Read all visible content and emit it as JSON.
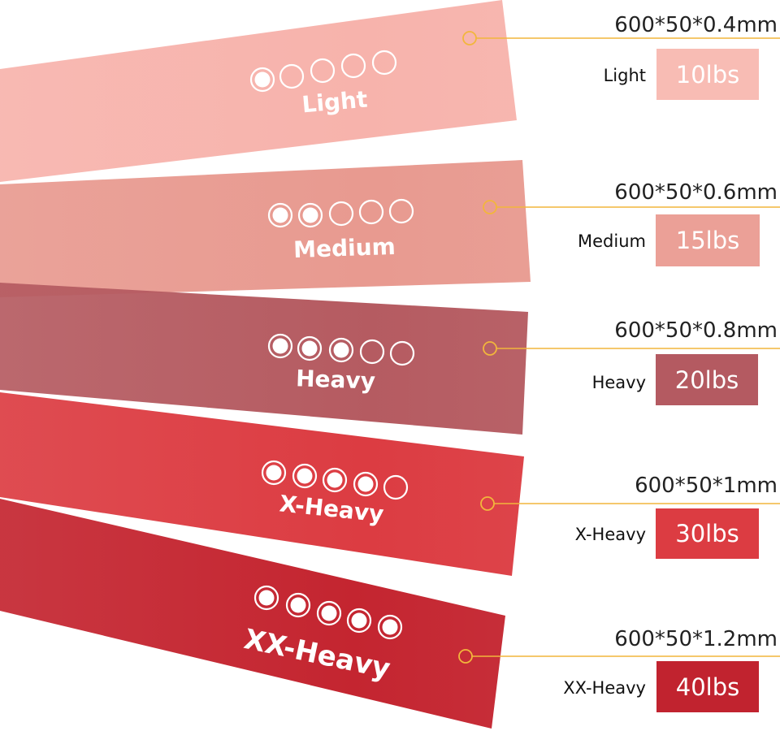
{
  "rating_max": 5,
  "bands": [
    {
      "label": "Light",
      "level": "Light",
      "thickness_spec": "600*50*0.4mm",
      "resistance": "10lbs",
      "rating": 1,
      "color": "#f7b3ac",
      "box_color": "#f8bcb4",
      "box_text_color": "#ffffff"
    },
    {
      "label": "Medium",
      "level": "Medium",
      "thickness_spec": "600*50*0.6mm",
      "resistance": "15lbs",
      "rating": 2,
      "color": "#e89a90",
      "box_color": "#eba097",
      "box_text_color": "#ffffff"
    },
    {
      "label": "Heavy",
      "level": "Heavy",
      "thickness_spec": "600*50*0.8mm",
      "resistance": "20lbs",
      "rating": 3,
      "color": "#b55b61",
      "box_color": "#b45a61",
      "box_text_color": "#ffffff"
    },
    {
      "label": "X-Heavy",
      "level": "X-Heavy",
      "thickness_spec": "600*50*1mm",
      "resistance": "30lbs",
      "rating": 4,
      "color": "#dc3c42",
      "box_color": "#dc3c42",
      "box_text_color": "#ffffff"
    },
    {
      "label": "XX-Heavy",
      "level": "XX-Heavy",
      "thickness_spec": "600*50*1.2mm",
      "resistance": "40lbs",
      "rating": 5,
      "color": "#c42530",
      "box_color": "#c1232f",
      "box_text_color": "#ffffff"
    }
  ],
  "leader_color": "#f2b63c"
}
